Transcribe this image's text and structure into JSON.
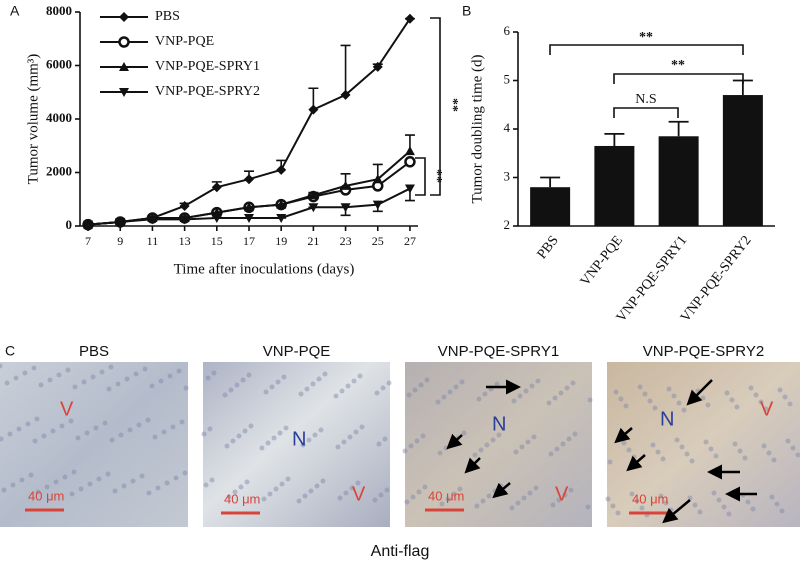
{
  "chart_data": [
    {
      "type": "line",
      "panel": "A",
      "x_label": "Time after inoculations (days)",
      "y_label": "Tumor volume (mm³)",
      "x": [
        7,
        9,
        11,
        13,
        15,
        17,
        19,
        21,
        23,
        25,
        27
      ],
      "xlim": [
        6.5,
        27.5
      ],
      "xticks": [
        7,
        9,
        11,
        13,
        15,
        17,
        19,
        21,
        23,
        25,
        27
      ],
      "ylim": [
        0,
        8000
      ],
      "yticks": [
        0,
        2000,
        4000,
        6000,
        8000
      ],
      "series": [
        {
          "name": "PBS",
          "color": "#111111",
          "marker": "diamond",
          "error_direction": "up",
          "values": [
            50,
            150,
            300,
            750,
            1450,
            1750,
            2100,
            4350,
            4900,
            5950,
            7750
          ],
          "errors": [
            0,
            0,
            0,
            100,
            200,
            300,
            350,
            800,
            1850,
            100,
            0
          ]
        },
        {
          "name": "VNP-PQE",
          "color": "#111111",
          "marker": "circle",
          "error_direction": "up",
          "values": [
            50,
            150,
            300,
            300,
            500,
            700,
            800,
            1100,
            1350,
            1500,
            2400
          ]
        },
        {
          "name": "VNP-PQE-SPRY1",
          "color": "#111111",
          "marker": "triangle",
          "error_direction": "up",
          "values": [
            50,
            150,
            300,
            300,
            500,
            700,
            800,
            1150,
            1500,
            1750,
            2800
          ],
          "errors": [
            0,
            0,
            0,
            0,
            0,
            0,
            0,
            100,
            450,
            550,
            600
          ]
        },
        {
          "name": "VNP-PQE-SPRY2",
          "color": "#111111",
          "marker": "triangle-down",
          "error_direction": "down",
          "values": [
            50,
            150,
            250,
            250,
            300,
            300,
            300,
            700,
            700,
            800,
            1400
          ],
          "errors": [
            0,
            0,
            0,
            0,
            0,
            0,
            0,
            0,
            300,
            250,
            450
          ]
        }
      ],
      "annotations": [
        "**",
        "**"
      ]
    },
    {
      "type": "bar",
      "panel": "B",
      "y_label": "Tumor doubling time (d)",
      "categories": [
        "PBS",
        "VNP-PQE",
        "VNP-PQE-SPRY1",
        "VNP-PQE-SPRY2"
      ],
      "values": [
        2.8,
        3.65,
        3.85,
        4.7
      ],
      "errors": [
        0.2,
        0.25,
        0.3,
        0.3
      ],
      "color": "#111111",
      "ylim": [
        2,
        6
      ],
      "yticks": [
        2,
        3,
        4,
        5,
        6
      ],
      "annotations": [
        "**",
        "**",
        "N.S"
      ]
    }
  ],
  "micrographs": {
    "panel": "C",
    "caption": "Anti-flag",
    "items": [
      {
        "title": "PBS",
        "labels": [
          "V",
          "40 μm"
        ]
      },
      {
        "title": "VNP-PQE",
        "labels": [
          "N",
          "V",
          "40 μm"
        ]
      },
      {
        "title": "VNP-PQE-SPRY1",
        "labels": [
          "N",
          "V",
          "40 μm"
        ]
      },
      {
        "title": "VNP-PQE-SPRY2",
        "labels": [
          "N",
          "V",
          "40 μm"
        ]
      }
    ]
  }
}
